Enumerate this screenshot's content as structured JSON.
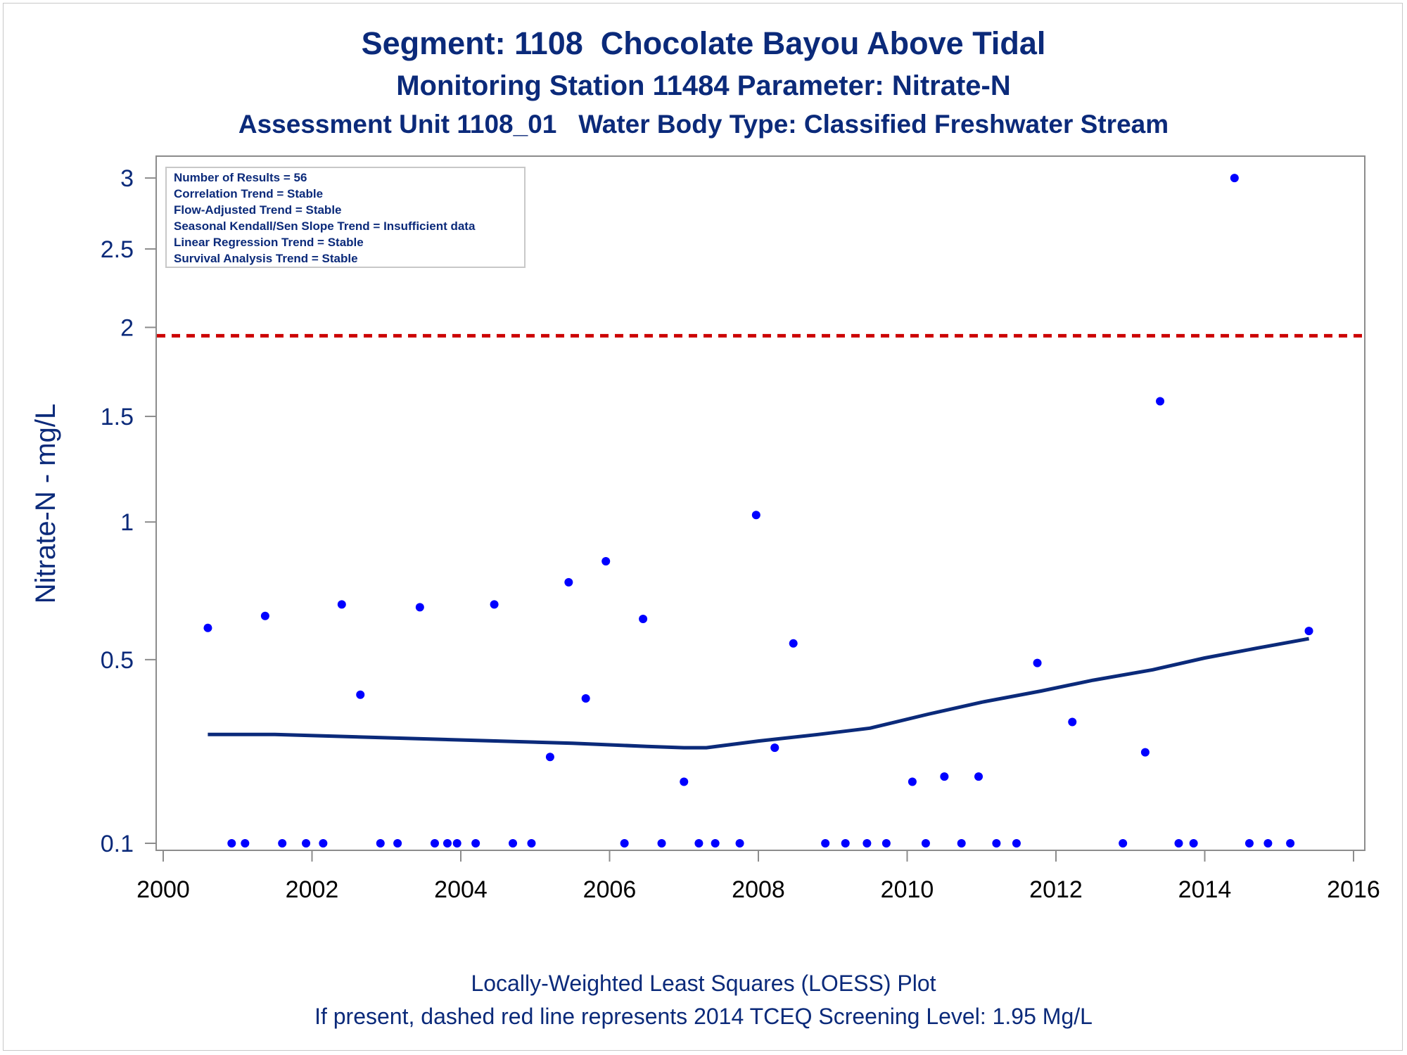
{
  "header": {
    "title": "Segment: 1108  Chocolate Bayou Above Tidal",
    "subtitle1": "Monitoring Station 11484 Parameter: Nitrate-N",
    "subtitle2": "Assessment Unit 1108_01   Water Body Type: Classified Freshwater Stream"
  },
  "footer": {
    "line1": "Locally-Weighted Least Squares (LOESS) Plot",
    "line2": "If present, dashed red line represents 2014 TCEQ Screening Level: 1.95 Mg/L"
  },
  "inset": {
    "lines": [
      "Number of Results = 56",
      "Correlation Trend = Stable",
      "Flow-Adjusted Trend = Stable",
      "Seasonal Kendall/Sen Slope Trend = Insufficient data",
      "Linear Regression Trend = Stable",
      "Survival Analysis Trend = Stable"
    ]
  },
  "colors": {
    "title": "#0b2a7a",
    "points": "#0000ff",
    "loess": "#0b2a7a",
    "screening": "#cc0000",
    "axis": "#8c8c8c"
  },
  "chart_data": {
    "type": "scatter",
    "ylabel": "Nitrate-N - mg/L",
    "xlabel": "",
    "xlim": [
      2000,
      2016
    ],
    "ylim": [
      0.1,
      3.1
    ],
    "yscale": "sqrt",
    "xticks": [
      2000,
      2002,
      2004,
      2006,
      2008,
      2010,
      2012,
      2014,
      2016
    ],
    "yticks": [
      0.1,
      0.5,
      1,
      1.5,
      2,
      2.5,
      3
    ],
    "ytick_labels": [
      "0.1",
      "0.5",
      "1",
      "1.5",
      "2",
      "2.5",
      "3"
    ],
    "screening_level": 1.95,
    "grid": false,
    "series": [
      {
        "kind": "points",
        "x": [
          2000.6,
          2000.92,
          2001.1,
          2001.37,
          2001.6,
          2001.92,
          2002.15,
          2002.4,
          2002.65,
          2002.92,
          2003.15,
          2003.45,
          2003.65,
          2003.82,
          2003.95,
          2004.2,
          2004.45,
          2004.7,
          2004.95,
          2005.2,
          2005.45,
          2005.68,
          2005.95,
          2006.2,
          2006.45,
          2006.7,
          2007.0,
          2007.2,
          2007.42,
          2007.75,
          2007.97,
          2008.22,
          2008.47,
          2008.9,
          2009.17,
          2009.46,
          2009.72,
          2010.07,
          2010.25,
          2010.5,
          2010.73,
          2010.96,
          2011.2,
          2011.47,
          2011.75,
          2012.22,
          2012.9,
          2013.2,
          2013.4,
          2013.65,
          2013.85,
          2014.4,
          2014.6,
          2014.85,
          2015.15,
          2015.4
        ],
        "y": [
          0.6,
          0.1,
          0.1,
          0.64,
          0.1,
          0.1,
          0.1,
          0.68,
          0.4,
          0.1,
          0.1,
          0.67,
          0.1,
          0.1,
          0.1,
          0.1,
          0.68,
          0.1,
          0.1,
          0.25,
          0.76,
          0.39,
          0.84,
          0.1,
          0.63,
          0.1,
          0.2,
          0.1,
          0.1,
          0.1,
          1.03,
          0.27,
          0.55,
          0.1,
          0.1,
          0.1,
          0.1,
          0.2,
          0.1,
          0.21,
          0.1,
          0.21,
          0.1,
          0.1,
          0.49,
          0.33,
          0.1,
          0.26,
          1.58,
          0.1,
          0.1,
          3.0,
          0.1,
          0.1,
          0.1,
          0.59
        ]
      },
      {
        "kind": "loess",
        "x": [
          2000.6,
          2001.5,
          2002.5,
          2003.5,
          2004.5,
          2005.5,
          2006.5,
          2007.0,
          2007.3,
          2008.0,
          2008.8,
          2009.5,
          2010.3,
          2011.0,
          2011.8,
          2012.5,
          2013.3,
          2014.0,
          2014.7,
          2015.4
        ],
        "y": [
          0.3,
          0.3,
          0.295,
          0.29,
          0.285,
          0.28,
          0.273,
          0.27,
          0.27,
          0.285,
          0.3,
          0.315,
          0.35,
          0.38,
          0.41,
          0.44,
          0.47,
          0.505,
          0.535,
          0.565
        ]
      }
    ]
  }
}
